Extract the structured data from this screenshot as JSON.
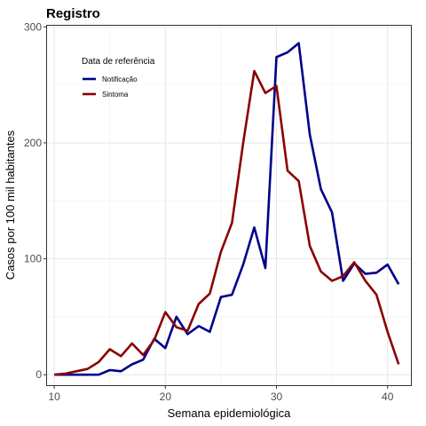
{
  "chart_data": {
    "type": "line",
    "title": "Registro",
    "xlabel": "Semana epidemiológica",
    "ylabel": "Casos por 100 mil habitantes",
    "xlim": [
      9.35,
      42.1
    ],
    "ylim": [
      -9,
      301
    ],
    "x_ticks": [
      10,
      20,
      30,
      40
    ],
    "y_ticks": [
      0,
      100,
      200,
      300
    ],
    "grid": true,
    "legend": {
      "title": "Data de referência",
      "placement": "top-left"
    },
    "series": [
      {
        "name": "Notificação",
        "color": "#00008b",
        "x": [
          10,
          11,
          12,
          13,
          14,
          15,
          16,
          17,
          18,
          19,
          20,
          21,
          22,
          23,
          24,
          25,
          26,
          27,
          28,
          29,
          30,
          31,
          32,
          33,
          34,
          35,
          36,
          37,
          38,
          39,
          40,
          41
        ],
        "y": [
          0,
          0,
          0,
          0,
          0,
          4,
          3,
          9,
          13,
          31,
          23,
          50,
          35,
          42,
          37,
          67,
          69,
          95,
          127,
          92,
          274,
          278,
          286,
          207,
          160,
          140,
          81,
          96,
          87,
          88,
          95,
          78
        ]
      },
      {
        "name": "Sintoma",
        "color": "#8b0000",
        "x": [
          10,
          11,
          12,
          13,
          14,
          15,
          16,
          17,
          18,
          19,
          20,
          21,
          22,
          23,
          24,
          25,
          26,
          27,
          28,
          29,
          30,
          31,
          32,
          33,
          34,
          35,
          36,
          37,
          38,
          39,
          40,
          41
        ],
        "y": [
          0,
          1,
          3,
          5,
          11,
          22,
          16,
          27,
          17,
          30,
          54,
          41,
          38,
          61,
          70,
          106,
          131,
          200,
          262,
          243,
          249,
          176,
          167,
          111,
          89,
          81,
          85,
          97,
          81,
          69,
          37,
          9
        ]
      }
    ]
  }
}
